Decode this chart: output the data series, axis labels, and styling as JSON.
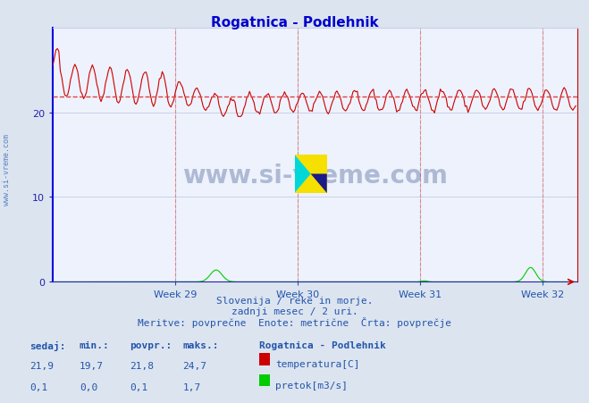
{
  "title": "Rogatnica - Podlehnik",
  "bg_color": "#dce4f0",
  "plot_bg_color": "#eef2fc",
  "grid_color": "#c8d0e8",
  "title_color": "#0000cc",
  "axis_color": "#2222aa",
  "text_color": "#2255aa",
  "ylim": [
    0,
    30
  ],
  "xlim": [
    0,
    360
  ],
  "yticks": [
    0,
    10,
    20
  ],
  "week_ticks": [
    84,
    168,
    252,
    336
  ],
  "week_labels": [
    "Week 29",
    "Week 30",
    "Week 31",
    "Week 32"
  ],
  "avg_temp": 21.8,
  "temp_color": "#cc0000",
  "flow_color": "#00cc00",
  "avg_line_color": "#dd4444",
  "watermark": "www.si-vreme.com",
  "subtitle1": "Slovenija / reke in morje.",
  "subtitle2": "zadnji mesec / 2 uri.",
  "subtitle3": "Meritve: povprečne  Enote: metrične  Črta: povprečje",
  "legend_title": "Rogatnica - Podlehnik",
  "stat_headers": [
    "sedaj:",
    "min.:",
    "povpr.:",
    "maks.:"
  ],
  "temp_stats": [
    "21,9",
    "19,7",
    "21,8",
    "24,7"
  ],
  "flow_stats": [
    "0,1",
    "0,0",
    "0,1",
    "1,7"
  ],
  "temp_label": "temperatura[C]",
  "flow_label": "pretok[m3/s]",
  "n_points": 360,
  "vline_color": "#dd8888",
  "spine_color": "#2222aa",
  "left_spine_color": "#0000dd"
}
